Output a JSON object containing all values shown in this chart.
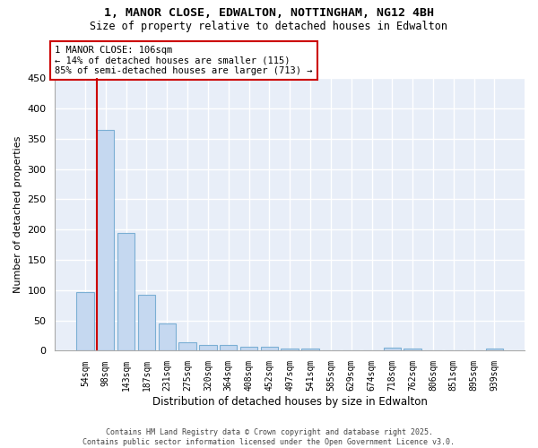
{
  "title": "1, MANOR CLOSE, EDWALTON, NOTTINGHAM, NG12 4BH",
  "subtitle": "Size of property relative to detached houses in Edwalton",
  "xlabel": "Distribution of detached houses by size in Edwalton",
  "ylabel": "Number of detached properties",
  "categories": [
    "54sqm",
    "98sqm",
    "143sqm",
    "187sqm",
    "231sqm",
    "275sqm",
    "320sqm",
    "364sqm",
    "408sqm",
    "452sqm",
    "497sqm",
    "541sqm",
    "585sqm",
    "629sqm",
    "674sqm",
    "718sqm",
    "762sqm",
    "806sqm",
    "851sqm",
    "895sqm",
    "939sqm"
  ],
  "values": [
    97,
    365,
    195,
    93,
    45,
    14,
    10,
    10,
    6,
    6,
    4,
    4,
    1,
    1,
    1,
    5,
    4,
    1,
    1,
    1,
    3
  ],
  "bar_color": "#c5d8f0",
  "bar_edge_color": "#7bafd4",
  "marker_line_index": 1,
  "marker_line_color": "#cc0000",
  "ylim_max": 450,
  "yticks": [
    0,
    50,
    100,
    150,
    200,
    250,
    300,
    350,
    400,
    450
  ],
  "annotation_text": "1 MANOR CLOSE: 106sqm\n← 14% of detached houses are smaller (115)\n85% of semi-detached houses are larger (713) →",
  "annotation_box_facecolor": "#ffffff",
  "annotation_box_edgecolor": "#cc0000",
  "bg_color": "#ffffff",
  "plot_bg_color": "#e8eef8",
  "grid_color": "#ffffff",
  "footer_line1": "Contains HM Land Registry data © Crown copyright and database right 2025.",
  "footer_line2": "Contains public sector information licensed under the Open Government Licence v3.0."
}
